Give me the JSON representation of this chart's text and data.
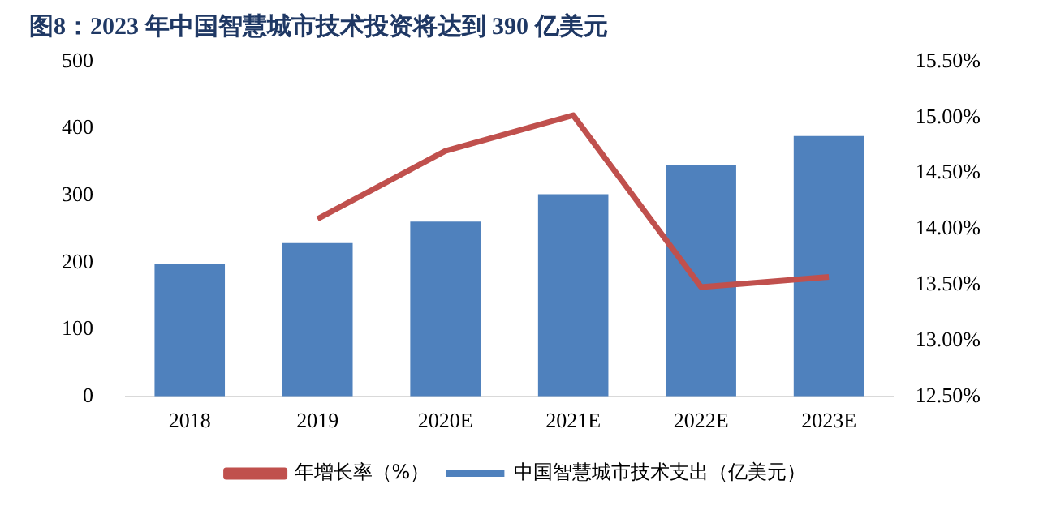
{
  "chart_data": {
    "type": "bar",
    "title": "图8：2023 年中国智慧城市技术投资将达到 390 亿美元",
    "categories": [
      "2018",
      "2019",
      "2020E",
      "2021E",
      "2022E",
      "2023E"
    ],
    "series": [
      {
        "name": "中国智慧城市技术支出（亿美元）",
        "color": "#4f81bd",
        "values": [
          198,
          229,
          261,
          302,
          345,
          389
        ]
      },
      {
        "name": "年增长率（%）",
        "type": "line",
        "axis": "y2",
        "color": "#c0504d",
        "values": [
          null,
          14.09,
          14.7,
          15.02,
          13.48,
          13.57
        ]
      }
    ],
    "ylim": [
      0,
      500
    ],
    "yticks": [
      0,
      100,
      200,
      300,
      400,
      500
    ],
    "y2lim": [
      12.5,
      15.5
    ],
    "y2ticks": [
      {
        "value": 12.5,
        "label": "12.50%"
      },
      {
        "value": 13,
        "label": "13.00%"
      },
      {
        "value": 13.5,
        "label": "13.50%"
      },
      {
        "value": 14,
        "label": "14.00%"
      },
      {
        "value": 14.5,
        "label": "14.50%"
      },
      {
        "value": 15,
        "label": "15.00%"
      },
      {
        "value": 15.5,
        "label": "15.50%"
      }
    ],
    "grid": false,
    "legend": "bottom",
    "marker": "none"
  }
}
